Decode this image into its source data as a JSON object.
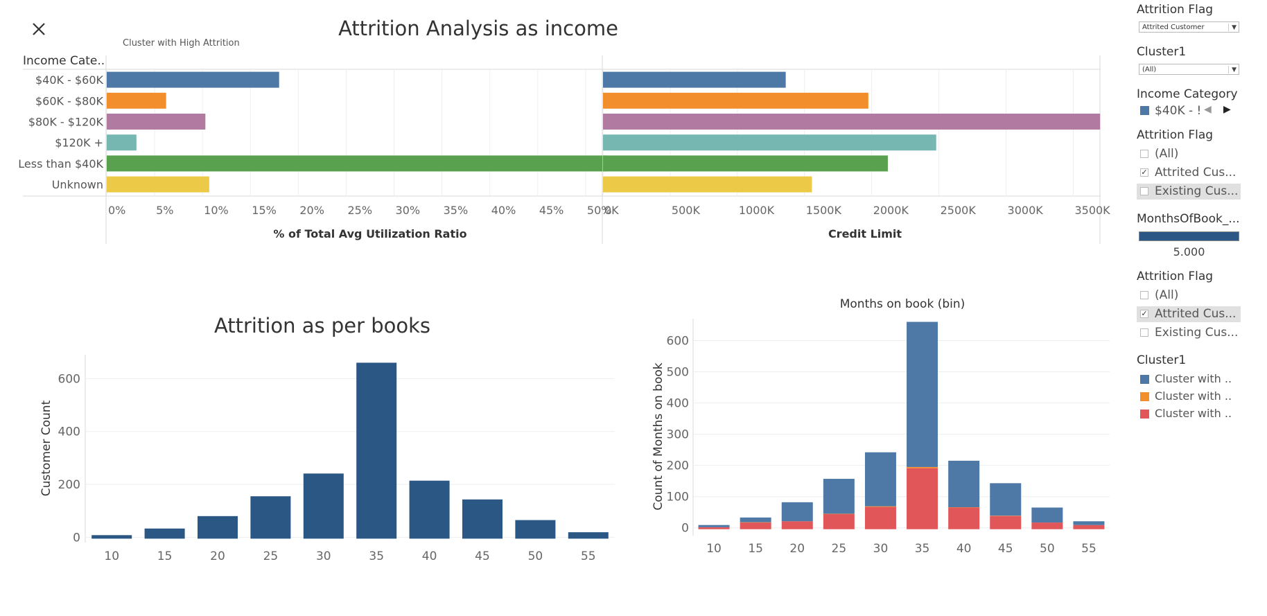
{
  "dashboard": {
    "title": "Attrition Analysis as income",
    "subtitle": "Cluster with High Attrition",
    "close_icon": "close-icon"
  },
  "chart_data": [
    {
      "type": "bar",
      "orientation": "horizontal",
      "row_header": "Income Cate..",
      "categories": [
        "$40K - $60K",
        "$60K - $80K",
        "$80K - $120K",
        "$120K +",
        "Less than $40K",
        "Unknown"
      ],
      "values": [
        18,
        6.2,
        10.3,
        3.1,
        52.3,
        10.7
      ],
      "colors": [
        "#4e79a7",
        "#f28e2b",
        "#b07aa1",
        "#76b7b2",
        "#59a14f",
        "#edc948"
      ],
      "xlabel": "% of Total Avg Utilization Ratio",
      "xlim": [
        0,
        55
      ],
      "ticks": [
        "0%",
        "5%",
        "10%",
        "15%",
        "20%",
        "25%",
        "30%",
        "35%",
        "40%",
        "45%",
        "50%"
      ]
    },
    {
      "type": "bar",
      "orientation": "horizontal",
      "categories": [
        "$40K - $60K",
        "$60K - $80K",
        "$80K - $120K",
        "$120K +",
        "Less than $40K",
        "Unknown"
      ],
      "values": [
        1360000,
        1975000,
        3700000,
        2480000,
        2120000,
        1555000
      ],
      "colors": [
        "#4e79a7",
        "#f28e2b",
        "#b07aa1",
        "#76b7b2",
        "#59a14f",
        "#edc948"
      ],
      "xlabel": "Credit Limit",
      "xlim": [
        0,
        3900000
      ],
      "ticks": [
        "0K",
        "500K",
        "1000K",
        "1500K",
        "2000K",
        "2500K",
        "3000K",
        "3500K"
      ]
    },
    {
      "type": "bar",
      "title": "Attrition as per books",
      "ylabel": "Customer Count",
      "categories": [
        "10",
        "15",
        "20",
        "25",
        "30",
        "35",
        "40",
        "45",
        "50",
        "55"
      ],
      "values": [
        8,
        33,
        80,
        155,
        241,
        660,
        214,
        143,
        65,
        19
      ],
      "ylim": [
        -20,
        690
      ],
      "yticks": [
        "0",
        "200",
        "400",
        "600"
      ],
      "color": "#2a5783",
      "grid": true
    },
    {
      "type": "bar",
      "stacked": true,
      "title": "Months on book (bin)",
      "ylabel": "Count of Months on book",
      "categories": [
        "10",
        "15",
        "20",
        "25",
        "30",
        "35",
        "40",
        "45",
        "50",
        "55"
      ],
      "series": [
        {
          "name": "Cluster with ..",
          "color": "#e15759",
          "values": [
            2,
            17,
            21,
            44,
            67,
            191,
            65,
            38,
            17,
            9
          ]
        },
        {
          "name": "Cluster with ..",
          "color": "#f28e2b",
          "values": [
            0,
            1,
            0,
            1,
            2,
            4,
            1,
            1,
            0,
            0
          ]
        },
        {
          "name": "Cluster with ..",
          "color": "#4e79a7",
          "values": [
            7,
            15,
            61,
            112,
            173,
            465,
            149,
            104,
            48,
            12
          ]
        }
      ],
      "ylim": [
        -25,
        670
      ],
      "yticks": [
        "0",
        "100",
        "200",
        "300",
        "400",
        "500",
        "600"
      ],
      "grid": true
    }
  ],
  "filters": {
    "attrition_flag_dropdown": {
      "title": "Attrition Flag",
      "value": "Attrited Customer"
    },
    "cluster_dropdown": {
      "title": "Cluster1",
      "value": "(All)"
    },
    "income_category": {
      "title": "Income Category",
      "value": "$40K - !",
      "color": "#4e79a7",
      "prev_icon": "caret-left-icon",
      "next_icon": "caret-right-icon"
    },
    "attrition_flag_list_1": {
      "title": "Attrition Flag",
      "items": [
        {
          "label": "(All)",
          "checked": false
        },
        {
          "label": "Attrited Cus...",
          "checked": true
        },
        {
          "label": "Existing Cus...",
          "checked": false
        }
      ]
    },
    "months_slider": {
      "title": "MonthsOfBook_...",
      "value": "5.000",
      "color": "#2a5783"
    },
    "attrition_flag_list_2": {
      "title": "Attrition Flag",
      "items": [
        {
          "label": "(All)",
          "checked": false
        },
        {
          "label": "Attrited Cus...",
          "checked": true
        },
        {
          "label": "Existing Cus...",
          "checked": false
        }
      ]
    },
    "cluster_legend": {
      "title": "Cluster1",
      "items": [
        {
          "label": "Cluster with ..",
          "color": "#4e79a7"
        },
        {
          "label": "Cluster with ..",
          "color": "#f28e2b"
        },
        {
          "label": "Cluster with ..",
          "color": "#e15759"
        }
      ]
    }
  }
}
